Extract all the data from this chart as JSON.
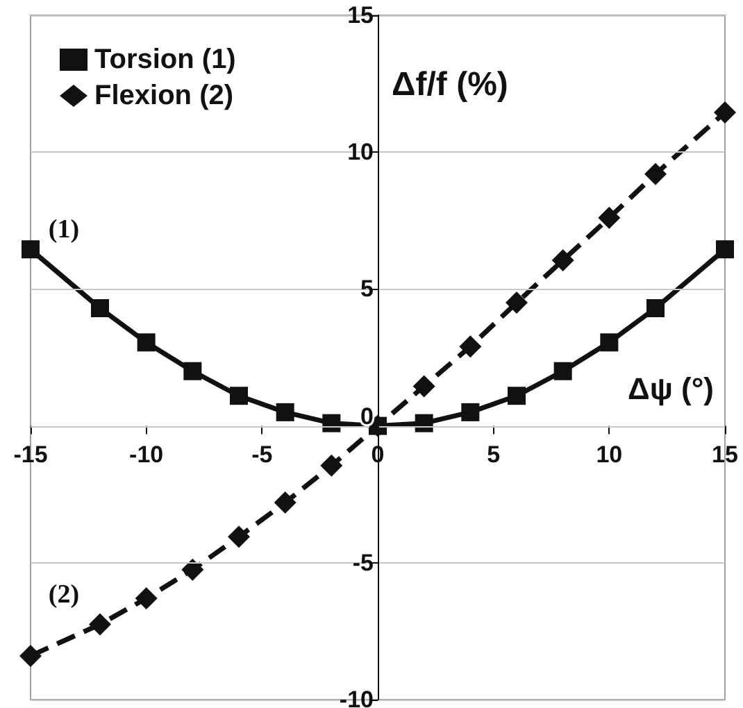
{
  "chart_data": {
    "type": "line",
    "xlabel": "Δψ (°)",
    "ylabel": "Δf/f (%)",
    "xlim": [
      -15,
      15
    ],
    "xticks": [
      -15,
      -10,
      -5,
      0,
      5,
      10,
      15
    ],
    "ylim": [
      -10,
      15
    ],
    "yticks": [
      -10,
      -5,
      0,
      5,
      10,
      15
    ],
    "grid": "y",
    "legend": "top left",
    "annotations": [
      "(1)",
      "(2)"
    ],
    "series": [
      {
        "name": "Torsion (1)",
        "color": "#111111",
        "marker": "square",
        "line_style": "solid",
        "x": [
          -15,
          -12,
          -10,
          -8,
          -6,
          -4,
          -2,
          0,
          2,
          4,
          6,
          8,
          10,
          12,
          15
        ],
        "values": [
          6.45,
          4.3,
          3.05,
          2.0,
          1.1,
          0.5,
          0.1,
          0,
          0.1,
          0.5,
          1.1,
          2.0,
          3.05,
          4.3,
          6.45
        ]
      },
      {
        "name": "Flexion (2)",
        "color": "#111111",
        "marker": "diamond",
        "line_style": "dashed",
        "x": [
          -15,
          -12,
          -10,
          -8,
          -6,
          -4,
          -2,
          0,
          2,
          4,
          6,
          8,
          10,
          12,
          15
        ],
        "values": [
          -8.4,
          -7.25,
          -6.3,
          -5.25,
          -4.05,
          -2.8,
          -1.45,
          0,
          1.45,
          2.9,
          4.5,
          6.05,
          7.6,
          9.2,
          11.45
        ]
      }
    ]
  }
}
